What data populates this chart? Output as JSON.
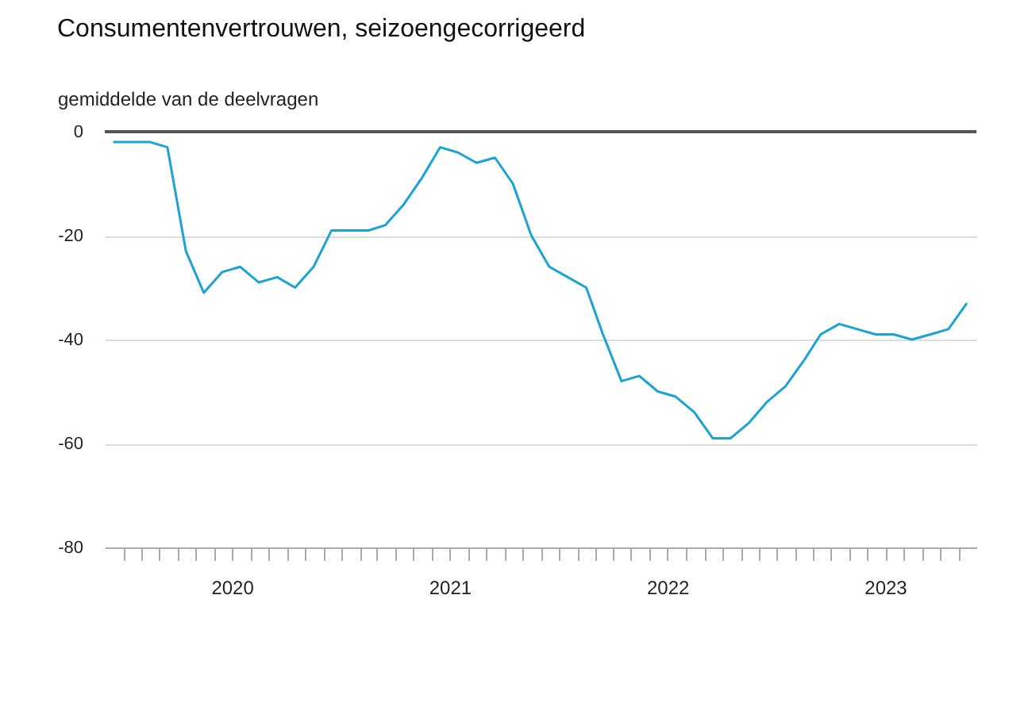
{
  "chart_data": {
    "type": "line",
    "title": "Consumentenvertrouwen, seizoengecorrigeerd",
    "ylabel": "gemiddelde van de deelvragen",
    "x": [
      "2019-12-15",
      "2020-01-15",
      "2020-02-15",
      "2020-03-15",
      "2020-04-15",
      "2020-05-15",
      "2020-06-15",
      "2020-07-15",
      "2020-08-15",
      "2020-09-15",
      "2020-10-15",
      "2020-11-15",
      "2020-12-15",
      "2021-01-15",
      "2021-02-15",
      "2021-03-15",
      "2021-04-15",
      "2021-05-15",
      "2021-06-15",
      "2021-07-15",
      "2021-08-15",
      "2021-09-15",
      "2021-10-15",
      "2021-11-15",
      "2021-12-15",
      "2022-01-15",
      "2022-02-15",
      "2022-03-15",
      "2022-04-15",
      "2022-05-15",
      "2022-06-15",
      "2022-07-15",
      "2022-08-15",
      "2022-09-15",
      "2022-10-15",
      "2022-11-15",
      "2022-12-15",
      "2023-01-15",
      "2023-02-15",
      "2023-03-15",
      "2023-04-15",
      "2023-05-15",
      "2023-06-15",
      "2023-07-15",
      "2023-08-15",
      "2023-09-15",
      "2023-10-15",
      "2023-11-15"
    ],
    "series": [
      {
        "color": "#1ba3d3",
        "values": [
          -2,
          -2,
          -2,
          -3,
          -23,
          -31,
          -27,
          -26,
          -29,
          -28,
          -30,
          -26,
          -19,
          -19,
          -19,
          -18,
          -14,
          -9,
          -3,
          -4,
          -6,
          -5,
          -10,
          -20,
          -26,
          -28,
          -30,
          -39,
          -48,
          -47,
          -50,
          -51,
          -54,
          -59,
          -59,
          -56,
          -52,
          -49,
          -44,
          -39,
          -37,
          -38,
          -39,
          -39,
          -40,
          -39,
          -38,
          -33
        ]
      }
    ],
    "xlim": [
      "2019-12-01",
      "2023-12-01"
    ],
    "xticks": [
      {
        "value": "2020-01-01",
        "label": null
      },
      {
        "value": "2020-02-01",
        "label": null
      },
      {
        "value": "2020-03-01",
        "label": null
      },
      {
        "value": "2020-04-01",
        "label": null
      },
      {
        "value": "2020-05-01",
        "label": null
      },
      {
        "value": "2020-06-01",
        "label": null
      },
      {
        "value": "2020-07-01",
        "label": "2020"
      },
      {
        "value": "2020-08-01",
        "label": null
      },
      {
        "value": "2020-09-01",
        "label": null
      },
      {
        "value": "2020-10-01",
        "label": null
      },
      {
        "value": "2020-11-01",
        "label": null
      },
      {
        "value": "2020-12-01",
        "label": null
      },
      {
        "value": "2021-01-01",
        "label": null
      },
      {
        "value": "2021-02-01",
        "label": null
      },
      {
        "value": "2021-03-01",
        "label": null
      },
      {
        "value": "2021-04-01",
        "label": null
      },
      {
        "value": "2021-05-01",
        "label": null
      },
      {
        "value": "2021-06-01",
        "label": null
      },
      {
        "value": "2021-07-01",
        "label": "2021"
      },
      {
        "value": "2021-08-01",
        "label": null
      },
      {
        "value": "2021-09-01",
        "label": null
      },
      {
        "value": "2021-10-01",
        "label": null
      },
      {
        "value": "2021-11-01",
        "label": null
      },
      {
        "value": "2021-12-01",
        "label": null
      },
      {
        "value": "2022-01-01",
        "label": null
      },
      {
        "value": "2022-02-01",
        "label": null
      },
      {
        "value": "2022-03-01",
        "label": null
      },
      {
        "value": "2022-04-01",
        "label": null
      },
      {
        "value": "2022-05-01",
        "label": null
      },
      {
        "value": "2022-06-01",
        "label": null
      },
      {
        "value": "2022-07-01",
        "label": "2022"
      },
      {
        "value": "2022-08-01",
        "label": null
      },
      {
        "value": "2022-09-01",
        "label": null
      },
      {
        "value": "2022-10-01",
        "label": null
      },
      {
        "value": "2022-11-01",
        "label": null
      },
      {
        "value": "2022-12-01",
        "label": null
      },
      {
        "value": "2023-01-01",
        "label": null
      },
      {
        "value": "2023-02-01",
        "label": null
      },
      {
        "value": "2023-03-01",
        "label": null
      },
      {
        "value": "2023-04-01",
        "label": null
      },
      {
        "value": "2023-05-01",
        "label": null
      },
      {
        "value": "2023-06-01",
        "label": null
      },
      {
        "value": "2023-07-01",
        "label": "2023"
      },
      {
        "value": "2023-08-01",
        "label": null
      },
      {
        "value": "2023-09-01",
        "label": null
      },
      {
        "value": "2023-10-01",
        "label": null
      },
      {
        "value": "2023-11-01",
        "label": null
      }
    ],
    "ylim": [
      -80,
      0
    ],
    "yticks": [
      -80,
      -60,
      -40,
      -20,
      0
    ],
    "grid": "y",
    "ref_lines": [
      {
        "axis": "y",
        "value": 0,
        "color": "#555555"
      }
    ]
  }
}
